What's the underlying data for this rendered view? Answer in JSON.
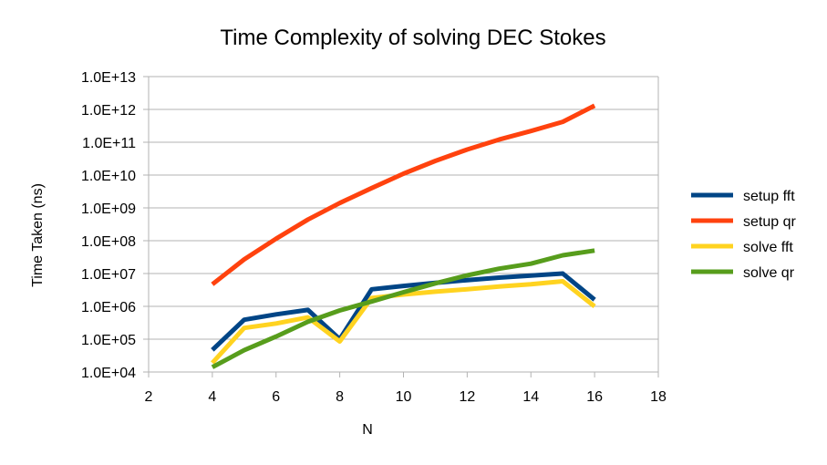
{
  "chart_data": {
    "type": "line",
    "title": "Time Complexity of solving DEC Stokes",
    "xlabel": "N",
    "ylabel": "Time Taken (ns)",
    "xlim": [
      2,
      18
    ],
    "xticks": [
      "2",
      "4",
      "6",
      "8",
      "10",
      "12",
      "14",
      "16",
      "18"
    ],
    "ylim": [
      10000,
      10000000000000
    ],
    "yscale": "log",
    "yticks": [
      "1.0E+04",
      "1.0E+05",
      "1.0E+06",
      "1.0E+07",
      "1.0E+08",
      "1.0E+09",
      "1.0E+10",
      "1.0E+11",
      "1.0E+12",
      "1.0E+13"
    ],
    "grid": "horizontal",
    "legend_position": "right",
    "x": [
      4,
      5,
      6,
      7,
      8,
      9,
      10,
      11,
      12,
      13,
      14,
      15,
      16
    ],
    "series": [
      {
        "name": "setup fft",
        "color": "#004586",
        "values": [
          47000,
          390000,
          570000,
          780000,
          100000,
          3300000,
          4200000,
          5200000,
          6300000,
          7500000,
          8700000,
          10000000,
          1600000
        ]
      },
      {
        "name": "setup qr",
        "color": "#ff420e",
        "values": [
          4700000,
          27000000,
          115000000,
          440000000,
          1400000000,
          4000000000,
          11000000000,
          27000000000,
          60000000000,
          120000000000,
          220000000000,
          420000000000,
          1300000000000
        ]
      },
      {
        "name": "solve fft",
        "color": "#ffd320",
        "values": [
          19000,
          220000,
          300000,
          460000,
          85000,
          1800000,
          2300000,
          2800000,
          3300000,
          4000000,
          4700000,
          5800000,
          1000000
        ]
      },
      {
        "name": "solve qr",
        "color": "#579d1c",
        "values": [
          14000,
          46000,
          120000,
          340000,
          750000,
          1400000,
          2700000,
          5000000,
          8800000,
          14000000,
          20000000,
          36000000,
          50000000
        ]
      }
    ]
  }
}
